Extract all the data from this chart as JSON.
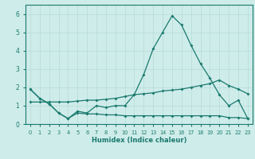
{
  "x": [
    0,
    1,
    2,
    3,
    4,
    5,
    6,
    7,
    8,
    9,
    10,
    11,
    12,
    13,
    14,
    15,
    16,
    17,
    18,
    19,
    20,
    21,
    22,
    23
  ],
  "line1": [
    1.9,
    1.4,
    1.1,
    0.6,
    0.3,
    0.7,
    0.6,
    1.0,
    0.9,
    1.0,
    1.0,
    1.6,
    2.7,
    4.1,
    5.0,
    5.9,
    5.4,
    4.3,
    3.3,
    2.5,
    1.6,
    1.0,
    1.3,
    0.3
  ],
  "line2": [
    1.2,
    1.2,
    1.2,
    1.2,
    1.2,
    1.25,
    1.3,
    1.3,
    1.35,
    1.4,
    1.5,
    1.6,
    1.65,
    1.7,
    1.8,
    1.85,
    1.9,
    2.0,
    2.1,
    2.2,
    2.4,
    2.1,
    1.9,
    1.65
  ],
  "line3": [
    1.9,
    1.4,
    1.1,
    0.6,
    0.3,
    0.6,
    0.55,
    0.55,
    0.5,
    0.5,
    0.45,
    0.45,
    0.45,
    0.45,
    0.45,
    0.45,
    0.45,
    0.45,
    0.45,
    0.45,
    0.45,
    0.35,
    0.35,
    0.3
  ],
  "line_color": "#1a7a6e",
  "bg_color": "#ceecea",
  "grid_color": "#b5dbd8",
  "xlabel": "Humidex (Indice chaleur)",
  "ylim": [
    0,
    6.5
  ],
  "xlim": [
    -0.5,
    23.5
  ],
  "yticks": [
    0,
    1,
    2,
    3,
    4,
    5,
    6
  ],
  "xtick_labels": [
    "0",
    "1",
    "2",
    "3",
    "4",
    "5",
    "6",
    "7",
    "8",
    "9",
    "10",
    "11",
    "12",
    "13",
    "14",
    "15",
    "16",
    "17",
    "18",
    "19",
    "20",
    "21",
    "22",
    "23"
  ]
}
